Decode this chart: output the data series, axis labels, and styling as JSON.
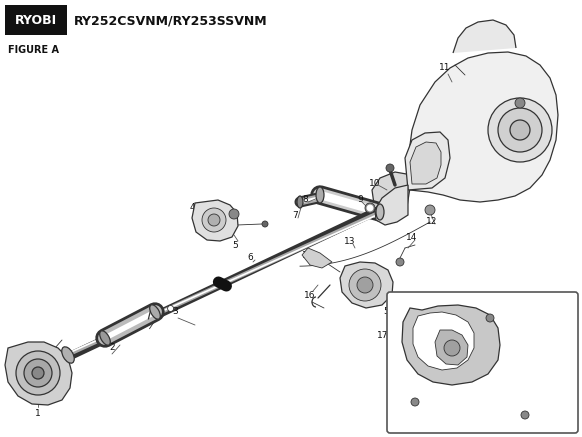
{
  "title": "RY252CSVNM/RY253SSVNM",
  "figure_label": "FIGURE A",
  "background_color": "#ffffff",
  "line_color": "#333333",
  "logo_bg": "#111111",
  "logo_fg": "#ffffff",
  "figsize": [
    5.82,
    4.37
  ],
  "dpi": 100
}
